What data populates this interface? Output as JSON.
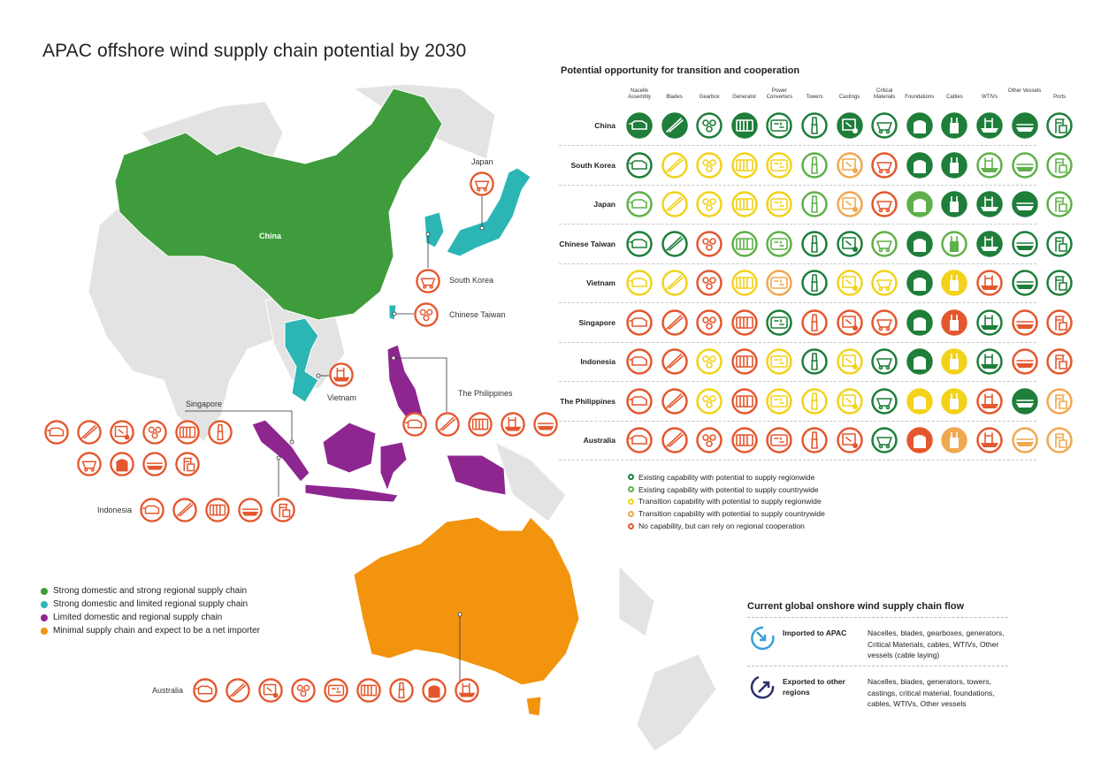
{
  "title": "APAC offshore wind supply chain potential by 2030",
  "colors": {
    "green_dark": "#1e7e3a",
    "green_light": "#5fb04a",
    "yellow": "#f2d21a",
    "orange_light": "#f0a850",
    "red_orange": "#e4572e",
    "map_green": "#3f9c3c",
    "map_teal": "#2bb5b5",
    "map_purple": "#8e2690",
    "map_orange": "#f2940e",
    "map_gray": "#e3e3e3"
  },
  "map": {
    "labels": {
      "china": "China",
      "japan": "Japan",
      "south_korea": "South Korea",
      "chinese_taiwan": "Chinese Taiwan",
      "vietnam": "Vietnam",
      "singapore": "Singapore",
      "philippines": "The Philippines",
      "indonesia": "Indonesia",
      "australia": "Australia"
    },
    "icon_groups": {
      "japan": [
        "casting-icon"
      ],
      "south_korea": [
        "casting-icon"
      ],
      "chinese_taiwan": [
        "gearbox-icon"
      ],
      "vietnam": [
        "wtiv-icon"
      ],
      "philippines": [
        "nacelle-icon",
        "blade-icon",
        "generator-icon",
        "wtiv-icon",
        "other-vessel-icon"
      ],
      "singapore_row1": [
        "nacelle-icon",
        "blade-icon",
        "cable-icon",
        "gearbox-icon",
        "generator-icon",
        "tower-icon"
      ],
      "singapore_row2": [
        "casting-icon",
        "foundation-icon",
        "other-vessel-icon",
        "port-icon"
      ],
      "indonesia": [
        "nacelle-icon",
        "blade-icon",
        "generator-icon",
        "other-vessel-icon",
        "port-icon"
      ],
      "australia": [
        "nacelle-icon",
        "blade-icon",
        "cable-icon",
        "gearbox-icon",
        "power-converter-icon",
        "generator-icon",
        "tower-icon",
        "foundation-icon",
        "wtiv-icon"
      ]
    }
  },
  "legend_left": [
    {
      "label": "Strong domestic and strong regional supply chain",
      "color": "#3f9c3c"
    },
    {
      "label": "Strong domestic and limited regional supply chain",
      "color": "#2bb5b5"
    },
    {
      "label": "Limited domestic and regional supply chain",
      "color": "#8e2690"
    },
    {
      "label": "Minimal supply chain and expect to be a net importer",
      "color": "#f2940e"
    }
  ],
  "matrix": {
    "title": "Potential opportunity for transition and cooperation",
    "columns": [
      {
        "label": "Nacelle Assembly",
        "icon": "nacelle-icon"
      },
      {
        "label": "Blades",
        "icon": "blade-icon"
      },
      {
        "label": "Gearbox",
        "icon": "gearbox-icon"
      },
      {
        "label": "Generator",
        "icon": "generator-icon"
      },
      {
        "label": "Power Converters",
        "icon": "power-converter-icon"
      },
      {
        "label": "Towers",
        "icon": "tower-icon"
      },
      {
        "label": "Castings",
        "icon": "cable-icon"
      },
      {
        "label": "Critical Materials",
        "icon": "casting-icon"
      },
      {
        "label": "Foundations",
        "icon": "foundation-icon"
      },
      {
        "label": "Cables",
        "icon": "cable-spool-icon"
      },
      {
        "label": "WTIVs",
        "icon": "wtiv-icon"
      },
      {
        "label": "Other Vessels",
        "icon": "other-vessel-icon"
      },
      {
        "label": "Ports",
        "icon": "port-icon"
      }
    ],
    "rows": [
      {
        "country": "China",
        "levels": [
          "EF",
          "EF",
          "E",
          "EF",
          "E",
          "E",
          "EF",
          "E",
          "EF",
          "EF",
          "EF",
          "EF",
          "E"
        ]
      },
      {
        "country": "South Korea",
        "levels": [
          "E",
          "Y",
          "Y",
          "Y",
          "Y",
          "G",
          "O",
          "R",
          "EF",
          "EF",
          "G",
          "G",
          "G"
        ]
      },
      {
        "country": "Japan",
        "levels": [
          "G",
          "Y",
          "Y",
          "Y",
          "Y",
          "G",
          "O",
          "R",
          "GF",
          "EF",
          "EF",
          "EF",
          "G"
        ]
      },
      {
        "country": "Chinese Taiwan",
        "levels": [
          "E",
          "E",
          "R",
          "G",
          "G",
          "E",
          "E",
          "G",
          "EF",
          "G",
          "EF",
          "E",
          "E"
        ]
      },
      {
        "country": "Vietnam",
        "levels": [
          "Y",
          "Y",
          "R",
          "Y",
          "O",
          "E",
          "Y",
          "Y",
          "EF",
          "YF",
          "R",
          "E",
          "E"
        ]
      },
      {
        "country": "Singapore",
        "levels": [
          "R",
          "R",
          "R",
          "R",
          "E",
          "R",
          "R",
          "R",
          "EF",
          "RF",
          "E",
          "R",
          "R"
        ]
      },
      {
        "country": "Indonesia",
        "levels": [
          "R",
          "R",
          "Y",
          "R",
          "Y",
          "E",
          "Y",
          "E",
          "EF",
          "YF",
          "E",
          "R",
          "R"
        ]
      },
      {
        "country": "The Philippines",
        "levels": [
          "R",
          "R",
          "Y",
          "R",
          "Y",
          "Y",
          "Y",
          "E",
          "YF",
          "YF",
          "R",
          "EF",
          "O"
        ]
      },
      {
        "country": "Australia",
        "levels": [
          "R",
          "R",
          "R",
          "R",
          "R",
          "R",
          "R",
          "E",
          "RF",
          "OF",
          "R",
          "O",
          "O"
        ]
      }
    ]
  },
  "capability_legend": [
    {
      "label": "Existing capability with potential to supply regionwide",
      "color": "#1e7e3a"
    },
    {
      "label": "Existing capability with potential to supply countrywide",
      "color": "#5fb04a"
    },
    {
      "label": "Transition capability with potential to supply regionwide",
      "color": "#f2d21a"
    },
    {
      "label": "Transition capability with potential to supply countrywide",
      "color": "#f0a850"
    },
    {
      "label": "No capability, but can rely on regional cooperation",
      "color": "#e4572e"
    }
  ],
  "flow": {
    "title": "Current global onshore wind supply chain flow",
    "rows": [
      {
        "label": "Imported to APAC",
        "icon": "import-arrow-icon",
        "color": "#3aa0d8",
        "desc": "Nacelles, blades, gearboxes, generators, Critical Materials, cables, WTIVs, Other vessels (cable laying)"
      },
      {
        "label": "Exported to other regions",
        "icon": "export-arrow-icon",
        "color": "#2d2f6e",
        "desc": "Nacelles, blades, generators, towers, castings, critical material, foundations, cables, WTIVs, Other vessels"
      }
    ]
  }
}
